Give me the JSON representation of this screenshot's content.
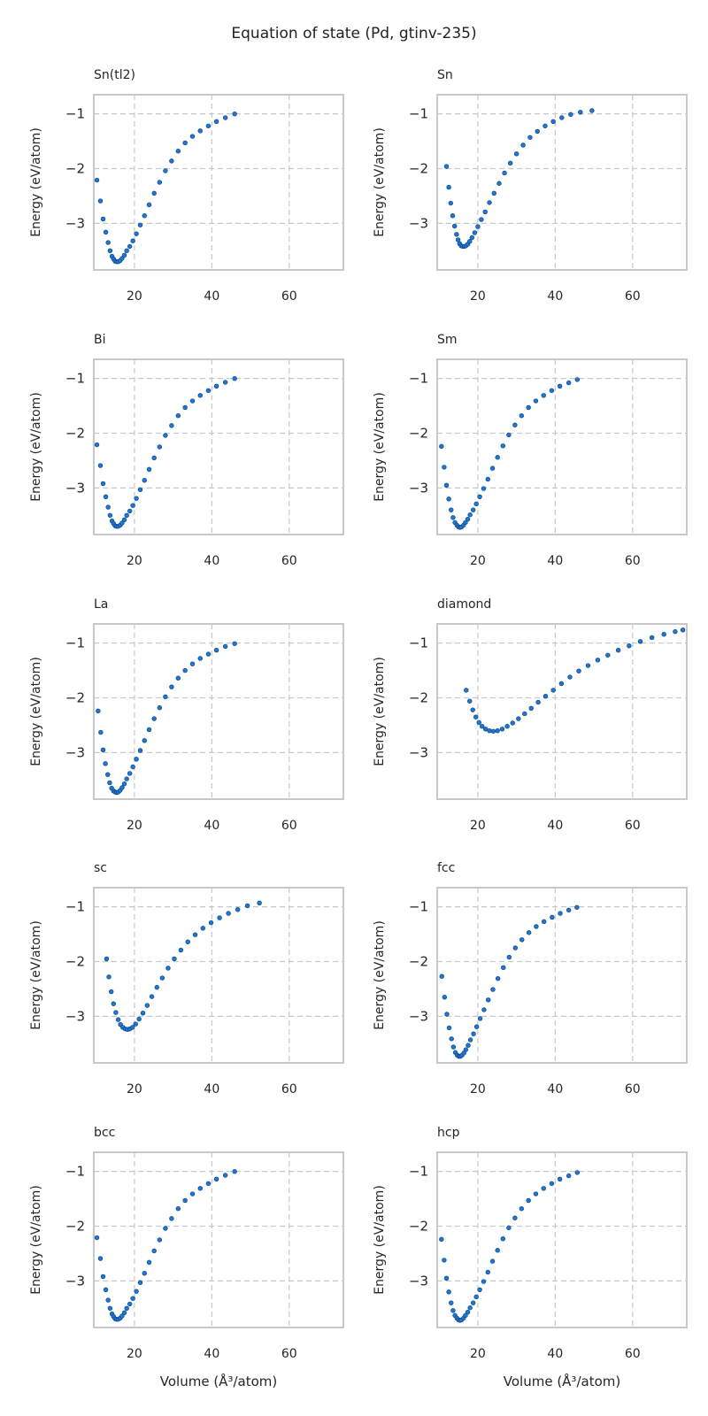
{
  "figure": {
    "title": "Equation of state (Pd, gtinv-235)"
  },
  "colors": {
    "marker": "#1f77d4",
    "marker_edge": "#0b3f7a",
    "grid": "#c8c8c8",
    "axes_frame": "#c8c8c8",
    "text": "#262626"
  },
  "chart_data": [
    {
      "type": "scatter",
      "title": "Sn(tl2)",
      "xlabel": "",
      "ylabel": "Energy (eV/atom)",
      "xlim": [
        9.5,
        74
      ],
      "ylim": [
        -3.85,
        -0.65
      ],
      "xticks": [
        20,
        40,
        60
      ],
      "yticks": [
        -1,
        -2,
        -3
      ],
      "xtick_labels": [
        "20",
        "40",
        "60"
      ],
      "ytick_labels": [
        "−1",
        "−2",
        "−3"
      ],
      "grid": true,
      "x": [
        10.3,
        11.2,
        11.9,
        12.6,
        13.2,
        13.7,
        14.2,
        14.6,
        15.0,
        15.4,
        15.8,
        16.3,
        16.8,
        17.4,
        18.0,
        18.8,
        19.6,
        20.5,
        21.5,
        22.6,
        23.8,
        25.1,
        26.5,
        28.0,
        29.6,
        31.3,
        33.1,
        35.0,
        37.0,
        39.1,
        41.2,
        43.5,
        45.9
      ],
      "y": [
        -2.21,
        -2.59,
        -2.92,
        -3.16,
        -3.35,
        -3.5,
        -3.6,
        -3.65,
        -3.69,
        -3.7,
        -3.7,
        -3.68,
        -3.64,
        -3.58,
        -3.5,
        -3.42,
        -3.32,
        -3.19,
        -3.03,
        -2.86,
        -2.66,
        -2.45,
        -2.25,
        -2.04,
        -1.86,
        -1.68,
        -1.53,
        -1.41,
        -1.31,
        -1.22,
        -1.14,
        -1.07,
        -1.0
      ]
    },
    {
      "type": "scatter",
      "title": "Sn",
      "xlabel": "",
      "ylabel": "Energy (eV/atom)",
      "xlim": [
        9.5,
        74
      ],
      "ylim": [
        -3.85,
        -0.65
      ],
      "xticks": [
        20,
        40,
        60
      ],
      "yticks": [
        -1,
        -2,
        -3
      ],
      "xtick_labels": [
        "20",
        "40",
        "60"
      ],
      "ytick_labels": [
        "−1",
        "−2",
        "−3"
      ],
      "grid": true,
      "x": [
        11.9,
        12.5,
        13.0,
        13.5,
        14.0,
        14.5,
        14.9,
        15.3,
        15.7,
        16.1,
        16.5,
        16.9,
        17.4,
        17.9,
        18.5,
        19.2,
        20.0,
        20.9,
        21.9,
        23.0,
        24.2,
        25.5,
        26.9,
        28.4,
        30.0,
        31.7,
        33.5,
        35.4,
        37.4,
        39.5,
        41.7,
        44.0,
        46.5,
        49.5
      ],
      "y": [
        -1.96,
        -2.34,
        -2.63,
        -2.86,
        -3.05,
        -3.2,
        -3.3,
        -3.37,
        -3.41,
        -3.42,
        -3.42,
        -3.41,
        -3.38,
        -3.33,
        -3.26,
        -3.17,
        -3.06,
        -2.93,
        -2.79,
        -2.62,
        -2.45,
        -2.27,
        -2.08,
        -1.9,
        -1.73,
        -1.57,
        -1.43,
        -1.32,
        -1.22,
        -1.14,
        -1.07,
        -1.01,
        -0.97,
        -0.94
      ]
    },
    {
      "type": "scatter",
      "title": "Bi",
      "xlabel": "",
      "ylabel": "Energy (eV/atom)",
      "xlim": [
        9.5,
        74
      ],
      "ylim": [
        -3.85,
        -0.65
      ],
      "xticks": [
        20,
        40,
        60
      ],
      "yticks": [
        -1,
        -2,
        -3
      ],
      "xtick_labels": [
        "20",
        "40",
        "60"
      ],
      "ytick_labels": [
        "−1",
        "−2",
        "−3"
      ],
      "grid": true,
      "x": [
        10.3,
        11.2,
        11.9,
        12.6,
        13.2,
        13.7,
        14.2,
        14.6,
        15.0,
        15.4,
        15.8,
        16.3,
        16.8,
        17.4,
        18.0,
        18.8,
        19.6,
        20.5,
        21.5,
        22.6,
        23.8,
        25.1,
        26.5,
        28.0,
        29.6,
        31.3,
        33.1,
        35.0,
        37.0,
        39.1,
        41.2,
        43.5,
        45.9
      ],
      "y": [
        -2.21,
        -2.59,
        -2.92,
        -3.16,
        -3.35,
        -3.5,
        -3.6,
        -3.65,
        -3.69,
        -3.7,
        -3.7,
        -3.68,
        -3.64,
        -3.58,
        -3.5,
        -3.42,
        -3.32,
        -3.19,
        -3.03,
        -2.86,
        -2.66,
        -2.45,
        -2.25,
        -2.04,
        -1.86,
        -1.68,
        -1.53,
        -1.41,
        -1.31,
        -1.22,
        -1.14,
        -1.07,
        -1.0
      ]
    },
    {
      "type": "scatter",
      "title": "Sm",
      "xlabel": "",
      "ylabel": "Energy (eV/atom)",
      "xlim": [
        9.5,
        74
      ],
      "ylim": [
        -3.85,
        -0.65
      ],
      "xticks": [
        20,
        40,
        60
      ],
      "yticks": [
        -1,
        -2,
        -3
      ],
      "xtick_labels": [
        "20",
        "40",
        "60"
      ],
      "ytick_labels": [
        "−1",
        "−2",
        "−3"
      ],
      "grid": true,
      "x": [
        10.6,
        11.3,
        11.9,
        12.5,
        13.1,
        13.6,
        14.1,
        14.6,
        15.0,
        15.4,
        15.8,
        16.3,
        16.8,
        17.4,
        18.0,
        18.8,
        19.6,
        20.5,
        21.5,
        22.6,
        23.8,
        25.1,
        26.5,
        28.0,
        29.6,
        31.3,
        33.1,
        35.0,
        37.0,
        39.1,
        41.2,
        43.5,
        45.7
      ],
      "y": [
        -2.24,
        -2.62,
        -2.95,
        -3.2,
        -3.4,
        -3.54,
        -3.63,
        -3.68,
        -3.71,
        -3.72,
        -3.71,
        -3.68,
        -3.63,
        -3.57,
        -3.49,
        -3.4,
        -3.29,
        -3.16,
        -3.01,
        -2.84,
        -2.64,
        -2.44,
        -2.23,
        -2.03,
        -1.85,
        -1.68,
        -1.53,
        -1.41,
        -1.31,
        -1.22,
        -1.14,
        -1.08,
        -1.02
      ]
    },
    {
      "type": "scatter",
      "title": "La",
      "xlabel": "",
      "ylabel": "Energy (eV/atom)",
      "xlim": [
        9.5,
        74
      ],
      "ylim": [
        -3.85,
        -0.65
      ],
      "xticks": [
        20,
        40,
        60
      ],
      "yticks": [
        -1,
        -2,
        -3
      ],
      "xtick_labels": [
        "20",
        "40",
        "60"
      ],
      "ytick_labels": [
        "−1",
        "−2",
        "−3"
      ],
      "grid": true,
      "x": [
        10.6,
        11.3,
        11.9,
        12.5,
        13.1,
        13.6,
        14.1,
        14.6,
        15.0,
        15.4,
        15.8,
        16.3,
        16.8,
        17.4,
        18.0,
        18.8,
        19.6,
        20.5,
        21.5,
        22.6,
        23.8,
        25.1,
        26.5,
        28.0,
        29.6,
        31.3,
        33.1,
        35.0,
        37.0,
        39.1,
        41.2,
        43.5,
        45.9
      ],
      "y": [
        -2.24,
        -2.63,
        -2.95,
        -3.2,
        -3.4,
        -3.55,
        -3.65,
        -3.7,
        -3.72,
        -3.73,
        -3.72,
        -3.69,
        -3.64,
        -3.57,
        -3.48,
        -3.38,
        -3.26,
        -3.12,
        -2.96,
        -2.78,
        -2.58,
        -2.38,
        -2.18,
        -1.98,
        -1.8,
        -1.64,
        -1.5,
        -1.38,
        -1.28,
        -1.2,
        -1.13,
        -1.06,
        -1.01
      ]
    },
    {
      "type": "scatter",
      "title": "diamond",
      "xlabel": "",
      "ylabel": "Energy (eV/atom)",
      "xlim": [
        9.5,
        74
      ],
      "ylim": [
        -3.85,
        -0.65
      ],
      "xticks": [
        20,
        40,
        60
      ],
      "yticks": [
        -1,
        -2,
        -3
      ],
      "xtick_labels": [
        "20",
        "40",
        "60"
      ],
      "ytick_labels": [
        "−1",
        "−2",
        "−3"
      ],
      "grid": true,
      "x": [
        17.0,
        17.9,
        18.7,
        19.5,
        20.3,
        21.1,
        22.0,
        23.0,
        24.0,
        25.1,
        26.3,
        27.6,
        29.0,
        30.5,
        32.1,
        33.8,
        35.6,
        37.5,
        39.5,
        41.6,
        43.8,
        46.1,
        48.5,
        51.0,
        53.6,
        56.3,
        59.1,
        62.0,
        65.0,
        68.1,
        71.0,
        73.0
      ],
      "y": [
        -1.86,
        -2.06,
        -2.22,
        -2.35,
        -2.45,
        -2.52,
        -2.57,
        -2.6,
        -2.61,
        -2.6,
        -2.57,
        -2.52,
        -2.46,
        -2.38,
        -2.29,
        -2.19,
        -2.08,
        -1.97,
        -1.86,
        -1.74,
        -1.62,
        -1.51,
        -1.41,
        -1.31,
        -1.22,
        -1.13,
        -1.05,
        -0.97,
        -0.9,
        -0.84,
        -0.79,
        -0.76
      ]
    },
    {
      "type": "scatter",
      "title": "sc",
      "xlabel": "",
      "ylabel": "Energy (eV/atom)",
      "xlim": [
        9.5,
        74
      ],
      "ylim": [
        -3.85,
        -0.65
      ],
      "xticks": [
        20,
        40,
        60
      ],
      "yticks": [
        -1,
        -2,
        -3
      ],
      "xtick_labels": [
        "20",
        "40",
        "60"
      ],
      "ytick_labels": [
        "−1",
        "−2",
        "−3"
      ],
      "grid": true,
      "x": [
        12.8,
        13.4,
        14.0,
        14.6,
        15.2,
        15.8,
        16.4,
        17.0,
        17.6,
        18.2,
        18.8,
        19.5,
        20.3,
        21.2,
        22.2,
        23.3,
        24.5,
        25.8,
        27.2,
        28.7,
        30.3,
        32.0,
        33.8,
        35.7,
        37.7,
        39.8,
        42.0,
        44.3,
        46.7,
        49.2,
        52.3
      ],
      "y": [
        -1.95,
        -2.28,
        -2.55,
        -2.77,
        -2.93,
        -3.06,
        -3.15,
        -3.2,
        -3.23,
        -3.24,
        -3.23,
        -3.2,
        -3.14,
        -3.05,
        -2.94,
        -2.8,
        -2.64,
        -2.47,
        -2.3,
        -2.12,
        -1.95,
        -1.79,
        -1.64,
        -1.51,
        -1.39,
        -1.29,
        -1.2,
        -1.12,
        -1.05,
        -0.98,
        -0.93
      ]
    },
    {
      "type": "scatter",
      "title": "fcc",
      "xlabel": "",
      "ylabel": "Energy (eV/atom)",
      "xlim": [
        9.5,
        74
      ],
      "ylim": [
        -3.85,
        -0.65
      ],
      "xticks": [
        20,
        40,
        60
      ],
      "yticks": [
        -1,
        -2,
        -3
      ],
      "xtick_labels": [
        "20",
        "40",
        "60"
      ],
      "ytick_labels": [
        "−1",
        "−2",
        "−3"
      ],
      "grid": true,
      "x": [
        10.7,
        11.4,
        12.0,
        12.6,
        13.2,
        13.7,
        14.2,
        14.7,
        15.1,
        15.5,
        15.9,
        16.4,
        16.9,
        17.5,
        18.1,
        18.9,
        19.7,
        20.6,
        21.6,
        22.7,
        23.9,
        25.2,
        26.6,
        28.1,
        29.7,
        31.4,
        33.2,
        35.1,
        37.1,
        39.2,
        41.3,
        43.5,
        45.6
      ],
      "y": [
        -2.27,
        -2.65,
        -2.96,
        -3.21,
        -3.41,
        -3.56,
        -3.66,
        -3.71,
        -3.73,
        -3.73,
        -3.71,
        -3.67,
        -3.61,
        -3.53,
        -3.43,
        -3.32,
        -3.19,
        -3.04,
        -2.88,
        -2.7,
        -2.51,
        -2.31,
        -2.11,
        -1.92,
        -1.75,
        -1.6,
        -1.47,
        -1.36,
        -1.27,
        -1.19,
        -1.12,
        -1.06,
        -1.01
      ]
    },
    {
      "type": "scatter",
      "title": "bcc",
      "xlabel": "Volume (Å³/atom)",
      "ylabel": "Energy (eV/atom)",
      "xlim": [
        9.5,
        74
      ],
      "ylim": [
        -3.85,
        -0.65
      ],
      "xticks": [
        20,
        40,
        60
      ],
      "yticks": [
        -1,
        -2,
        -3
      ],
      "xtick_labels": [
        "20",
        "40",
        "60"
      ],
      "ytick_labels": [
        "−1",
        "−2",
        "−3"
      ],
      "grid": true,
      "x": [
        10.3,
        11.2,
        11.9,
        12.6,
        13.2,
        13.7,
        14.2,
        14.6,
        15.0,
        15.4,
        15.8,
        16.3,
        16.8,
        17.4,
        18.0,
        18.8,
        19.6,
        20.5,
        21.5,
        22.6,
        23.8,
        25.1,
        26.5,
        28.0,
        29.6,
        31.3,
        33.1,
        35.0,
        37.0,
        39.1,
        41.2,
        43.5,
        45.9
      ],
      "y": [
        -2.21,
        -2.59,
        -2.92,
        -3.16,
        -3.35,
        -3.5,
        -3.6,
        -3.65,
        -3.69,
        -3.7,
        -3.7,
        -3.68,
        -3.64,
        -3.58,
        -3.5,
        -3.42,
        -3.32,
        -3.19,
        -3.03,
        -2.86,
        -2.66,
        -2.45,
        -2.25,
        -2.04,
        -1.86,
        -1.68,
        -1.53,
        -1.41,
        -1.31,
        -1.22,
        -1.14,
        -1.07,
        -1.0
      ]
    },
    {
      "type": "scatter",
      "title": "hcp",
      "xlabel": "Volume (Å³/atom)",
      "ylabel": "Energy (eV/atom)",
      "xlim": [
        9.5,
        74
      ],
      "ylim": [
        -3.85,
        -0.65
      ],
      "xticks": [
        20,
        40,
        60
      ],
      "yticks": [
        -1,
        -2,
        -3
      ],
      "xtick_labels": [
        "20",
        "40",
        "60"
      ],
      "ytick_labels": [
        "−1",
        "−2",
        "−3"
      ],
      "grid": true,
      "x": [
        10.6,
        11.3,
        11.9,
        12.5,
        13.1,
        13.6,
        14.1,
        14.6,
        15.0,
        15.4,
        15.8,
        16.3,
        16.8,
        17.4,
        18.0,
        18.8,
        19.6,
        20.5,
        21.5,
        22.6,
        23.8,
        25.1,
        26.5,
        28.0,
        29.6,
        31.3,
        33.1,
        35.0,
        37.0,
        39.1,
        41.2,
        43.5,
        45.7
      ],
      "y": [
        -2.24,
        -2.62,
        -2.95,
        -3.2,
        -3.4,
        -3.54,
        -3.63,
        -3.68,
        -3.71,
        -3.72,
        -3.71,
        -3.68,
        -3.63,
        -3.57,
        -3.49,
        -3.4,
        -3.29,
        -3.16,
        -3.01,
        -2.84,
        -2.64,
        -2.44,
        -2.23,
        -2.03,
        -1.85,
        -1.68,
        -1.53,
        -1.41,
        -1.31,
        -1.22,
        -1.14,
        -1.08,
        -1.02
      ]
    }
  ]
}
